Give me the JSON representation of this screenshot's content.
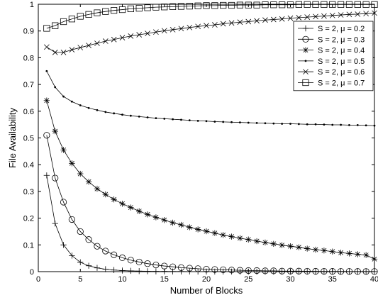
{
  "chart_data": {
    "type": "line",
    "xlabel": "Number of Blocks",
    "ylabel": "File Availability",
    "xlim": [
      0,
      40
    ],
    "ylim": [
      0,
      1
    ],
    "xticks": [
      0,
      5,
      10,
      15,
      20,
      25,
      30,
      35,
      40
    ],
    "yticks": [
      0,
      0.1,
      0.2,
      0.3,
      0.4,
      0.5,
      0.6,
      0.7,
      0.8,
      0.9,
      1
    ],
    "ytick_labels": [
      "0",
      "0.1",
      "0.2",
      "0.3",
      "0.4",
      "0.5",
      "0.6",
      "0.7",
      "0.8",
      "0.9",
      "1"
    ],
    "grid": false,
    "legend_position": "top-right",
    "series": [
      {
        "name": "S = 2, μ = 0.2",
        "marker": "plus",
        "values": [
          0.36,
          0.18,
          0.1,
          0.06,
          0.035,
          0.022,
          0.014,
          0.009,
          0.006,
          0.004,
          0.003,
          0.002,
          0.0015,
          0.001,
          0.0008,
          0.0006,
          0.0005,
          0.0004,
          0.0003,
          0.0002,
          0.0002,
          0.0001,
          0.0001,
          0.0001,
          0.0001,
          0.0001,
          0.0001,
          0.0001,
          0.0001,
          0.0001,
          0.0001,
          0.0001,
          0.0001,
          0.0001,
          0.0001,
          0.0001,
          0.0001,
          0.0001,
          0.0001,
          0.0001
        ]
      },
      {
        "name": "S = 2, μ = 0.3",
        "marker": "circle",
        "values": [
          0.51,
          0.35,
          0.26,
          0.195,
          0.15,
          0.12,
          0.095,
          0.077,
          0.063,
          0.052,
          0.043,
          0.036,
          0.03,
          0.025,
          0.021,
          0.018,
          0.015,
          0.013,
          0.011,
          0.009,
          0.008,
          0.007,
          0.006,
          0.005,
          0.004,
          0.004,
          0.003,
          0.003,
          0.002,
          0.002,
          0.002,
          0.0015,
          0.0013,
          0.0011,
          0.001,
          0.0008,
          0.0007,
          0.0006,
          0.0005,
          0.0005
        ]
      },
      {
        "name": "S = 2, μ = 0.4",
        "marker": "star",
        "values": [
          0.64,
          0.525,
          0.455,
          0.405,
          0.366,
          0.336,
          0.31,
          0.289,
          0.27,
          0.254,
          0.24,
          0.226,
          0.214,
          0.203,
          0.193,
          0.183,
          0.175,
          0.166,
          0.158,
          0.151,
          0.144,
          0.137,
          0.131,
          0.125,
          0.12,
          0.114,
          0.109,
          0.104,
          0.099,
          0.095,
          0.091,
          0.086,
          0.082,
          0.079,
          0.075,
          0.071,
          0.068,
          0.065,
          0.062,
          0.047
        ]
      },
      {
        "name": "S = 2, μ = 0.5",
        "marker": "dot",
        "values": [
          0.75,
          0.69,
          0.655,
          0.636,
          0.622,
          0.612,
          0.604,
          0.597,
          0.592,
          0.587,
          0.583,
          0.58,
          0.577,
          0.574,
          0.572,
          0.57,
          0.568,
          0.566,
          0.564,
          0.563,
          0.561,
          0.56,
          0.559,
          0.558,
          0.557,
          0.556,
          0.555,
          0.554,
          0.553,
          0.553,
          0.552,
          0.551,
          0.551,
          0.55,
          0.549,
          0.549,
          0.548,
          0.548,
          0.547,
          0.546
        ]
      },
      {
        "name": "S = 2, μ = 0.6",
        "marker": "x",
        "values": [
          0.84,
          0.82,
          0.82,
          0.83,
          0.838,
          0.846,
          0.854,
          0.862,
          0.868,
          0.875,
          0.881,
          0.886,
          0.891,
          0.896,
          0.901,
          0.905,
          0.909,
          0.913,
          0.917,
          0.92,
          0.923,
          0.927,
          0.93,
          0.933,
          0.935,
          0.938,
          0.941,
          0.943,
          0.945,
          0.948,
          0.95,
          0.952,
          0.954,
          0.956,
          0.958,
          0.96,
          0.962,
          0.963,
          0.965,
          0.967
        ]
      },
      {
        "name": "S = 2, μ = 0.7",
        "marker": "square",
        "values": [
          0.91,
          0.92,
          0.935,
          0.945,
          0.955,
          0.962,
          0.968,
          0.973,
          0.977,
          0.98,
          0.983,
          0.985,
          0.987,
          0.989,
          0.99,
          0.991,
          0.992,
          0.993,
          0.994,
          0.995,
          0.995,
          0.996,
          0.996,
          0.997,
          0.997,
          0.997,
          0.998,
          0.998,
          0.998,
          0.998,
          0.999,
          0.999,
          0.999,
          0.999,
          0.999,
          0.999,
          0.999,
          0.999,
          0.999,
          0.999
        ]
      }
    ]
  }
}
